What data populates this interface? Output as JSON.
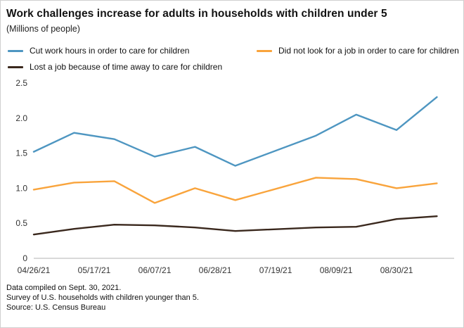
{
  "chart_data": {
    "type": "line",
    "title": "Work challenges increase for adults in households with children under 5",
    "subtitle": "(Millions of people)",
    "x_unit": "days since 04/26/21 (survey period end dates)",
    "x_domain": [
      0,
      146
    ],
    "ylim": [
      0,
      2.5
    ],
    "grid": false,
    "legend_position": "top",
    "y_ticks": [
      "0",
      "0.5",
      "1.0",
      "1.5",
      "2.0",
      "2.5"
    ],
    "x_ticks": [
      {
        "day": 0,
        "label": "04/26/21"
      },
      {
        "day": 21,
        "label": "05/17/21"
      },
      {
        "day": 42,
        "label": "06/07/21"
      },
      {
        "day": 63,
        "label": "06/28/21"
      },
      {
        "day": 84,
        "label": "07/19/21"
      },
      {
        "day": 105,
        "label": "08/09/21"
      },
      {
        "day": 126,
        "label": "08/30/21"
      }
    ],
    "series": [
      {
        "name": "Cut work hours in order to care for children",
        "color": "#4e96c1",
        "x_days": [
          0,
          14,
          28,
          42,
          56,
          70,
          98,
          112,
          126,
          140
        ],
        "values": [
          1.52,
          1.79,
          1.7,
          1.45,
          1.59,
          1.32,
          1.75,
          2.05,
          1.83,
          2.3
        ]
      },
      {
        "name": "Did not look for a job in order to care for children",
        "color": "#f9a43c",
        "x_days": [
          0,
          14,
          28,
          42,
          56,
          70,
          98,
          112,
          126,
          140
        ],
        "values": [
          0.98,
          1.08,
          1.1,
          0.79,
          1.0,
          0.83,
          1.15,
          1.13,
          1.0,
          1.07
        ]
      },
      {
        "name": "Lost a job because of time away to care for children",
        "color": "#3a281d",
        "x_days": [
          0,
          14,
          28,
          42,
          56,
          70,
          98,
          112,
          126,
          140
        ],
        "values": [
          0.34,
          0.42,
          0.48,
          0.47,
          0.44,
          0.39,
          0.44,
          0.45,
          0.56,
          0.6
        ]
      }
    ]
  },
  "footer": {
    "lines": [
      "Data compiled on Sept. 30, 2021.",
      "Survey of U.S. households with children younger than 5.",
      "Source: U.S. Census Bureau"
    ]
  }
}
